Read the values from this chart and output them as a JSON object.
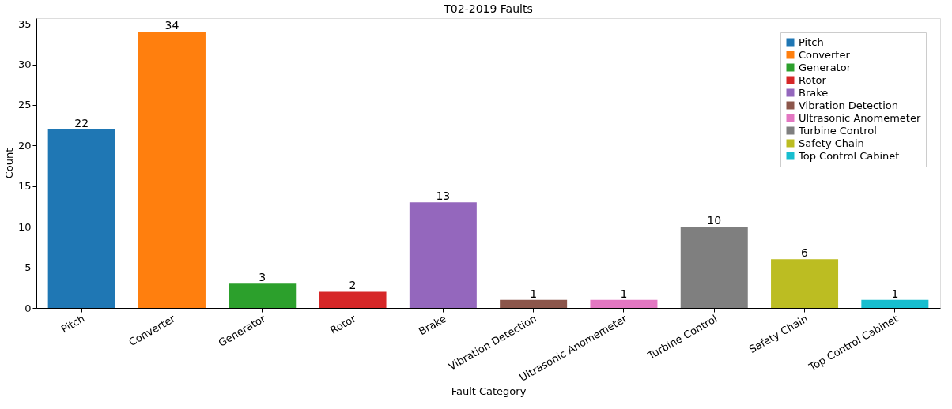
{
  "chart_data": {
    "type": "bar",
    "title": "T02-2019 Faults",
    "xlabel": "Fault Category",
    "ylabel": "Count",
    "categories": [
      "Pitch",
      "Converter",
      "Generator",
      "Rotor",
      "Brake",
      "Vibration Detection",
      "Ultrasonic Anomemeter",
      "Turbine Control",
      "Safety Chain",
      "Top Control Cabinet"
    ],
    "series": [
      {
        "name": "Pitch",
        "color": "#1f77b4",
        "values": [
          22,
          null,
          null,
          null,
          null,
          null,
          null,
          null,
          null,
          null
        ]
      },
      {
        "name": "Converter",
        "color": "#ff7f0e",
        "values": [
          null,
          34,
          null,
          null,
          null,
          null,
          null,
          null,
          null,
          null
        ]
      },
      {
        "name": "Generator",
        "color": "#2ca02c",
        "values": [
          null,
          null,
          3,
          null,
          null,
          null,
          null,
          null,
          null,
          null
        ]
      },
      {
        "name": "Rotor",
        "color": "#d62728",
        "values": [
          null,
          null,
          null,
          2,
          null,
          null,
          null,
          null,
          null,
          null
        ]
      },
      {
        "name": "Brake",
        "color": "#9467bd",
        "values": [
          null,
          null,
          null,
          null,
          13,
          null,
          null,
          null,
          null,
          null
        ]
      },
      {
        "name": "Vibration Detection",
        "color": "#8c564b",
        "values": [
          null,
          null,
          null,
          null,
          null,
          1,
          null,
          null,
          null,
          null
        ]
      },
      {
        "name": "Ultrasonic Anomemeter",
        "color": "#e377c2",
        "values": [
          null,
          null,
          null,
          null,
          null,
          null,
          1,
          null,
          null,
          null
        ]
      },
      {
        "name": "Turbine Control",
        "color": "#7f7f7f",
        "values": [
          null,
          null,
          null,
          null,
          null,
          null,
          null,
          10,
          null,
          null
        ]
      },
      {
        "name": "Safety Chain",
        "color": "#bcbd22",
        "values": [
          null,
          null,
          null,
          null,
          null,
          null,
          null,
          null,
          6,
          null
        ]
      },
      {
        "name": "Top Control Cabinet",
        "color": "#17becf",
        "values": [
          null,
          null,
          null,
          null,
          null,
          null,
          null,
          null,
          null,
          1
        ]
      }
    ],
    "ylim": [
      0,
      35.7
    ],
    "yticks": [
      0,
      5,
      10,
      15,
      20,
      25,
      30,
      35
    ],
    "data_labels": true,
    "legend": "top right",
    "grid": false
  }
}
